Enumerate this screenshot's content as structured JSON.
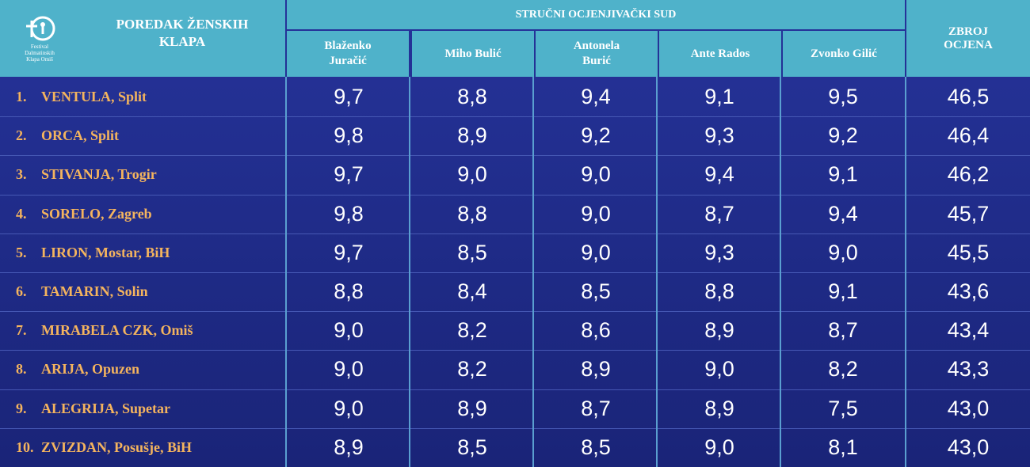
{
  "header": {
    "logo_text": [
      "Festival",
      "Dalmatinskih",
      "Klapa Omiš"
    ],
    "ranking_title": "POREDAK ŽENSKIH KLAPA",
    "jury_title": "STRUČNI OCJENJIVAČKI SUD",
    "judges": [
      "Blaženko Juračić",
      "Miho Bulić",
      "Antonela Burić",
      "Ante Rados",
      "Zvonko Gilić"
    ],
    "total_title": "ZBROJ OCJENA"
  },
  "table": {
    "rows": [
      {
        "rank": "1.",
        "name": "VENTULA, Split",
        "scores": [
          "9,7",
          "8,8",
          "9,4",
          "9,1",
          "9,5"
        ],
        "total": "46,5"
      },
      {
        "rank": "2.",
        "name": "ORCA, Split",
        "scores": [
          "9,8",
          "8,9",
          "9,2",
          "9,3",
          "9,2"
        ],
        "total": "46,4"
      },
      {
        "rank": "3.",
        "name": "STIVANJA, Trogir",
        "scores": [
          "9,7",
          "9,0",
          "9,0",
          "9,4",
          "9,1"
        ],
        "total": "46,2"
      },
      {
        "rank": "4.",
        "name": "SORELO, Zagreb",
        "scores": [
          "9,8",
          "8,8",
          "9,0",
          "8,7",
          "9,4"
        ],
        "total": "45,7"
      },
      {
        "rank": "5.",
        "name": "LIRON, Mostar, BiH",
        "scores": [
          "9,7",
          "8,5",
          "9,0",
          "9,3",
          "9,0"
        ],
        "total": "45,5"
      },
      {
        "rank": "6.",
        "name": "TAMARIN, Solin",
        "scores": [
          "8,8",
          "8,4",
          "8,5",
          "8,8",
          "9,1"
        ],
        "total": "43,6"
      },
      {
        "rank": "7.",
        "name": "MIRABELA CZK, Omiš",
        "scores": [
          "9,0",
          "8,2",
          "8,6",
          "8,9",
          "8,7"
        ],
        "total": "43,4"
      },
      {
        "rank": "8.",
        "name": "ARIJA, Opuzen",
        "scores": [
          "9,0",
          "8,2",
          "8,9",
          "9,0",
          "8,2"
        ],
        "total": "43,3"
      },
      {
        "rank": "9.",
        "name": "ALEGRIJA, Supetar",
        "scores": [
          "9,0",
          "8,9",
          "8,7",
          "8,9",
          "7,5"
        ],
        "total": "43,0"
      },
      {
        "rank": "10.",
        "name": "ZVIZDAN, Posušje, BiH",
        "scores": [
          "8,9",
          "8,5",
          "8,5",
          "9,0",
          "8,1"
        ],
        "total": "43,0"
      }
    ]
  }
}
